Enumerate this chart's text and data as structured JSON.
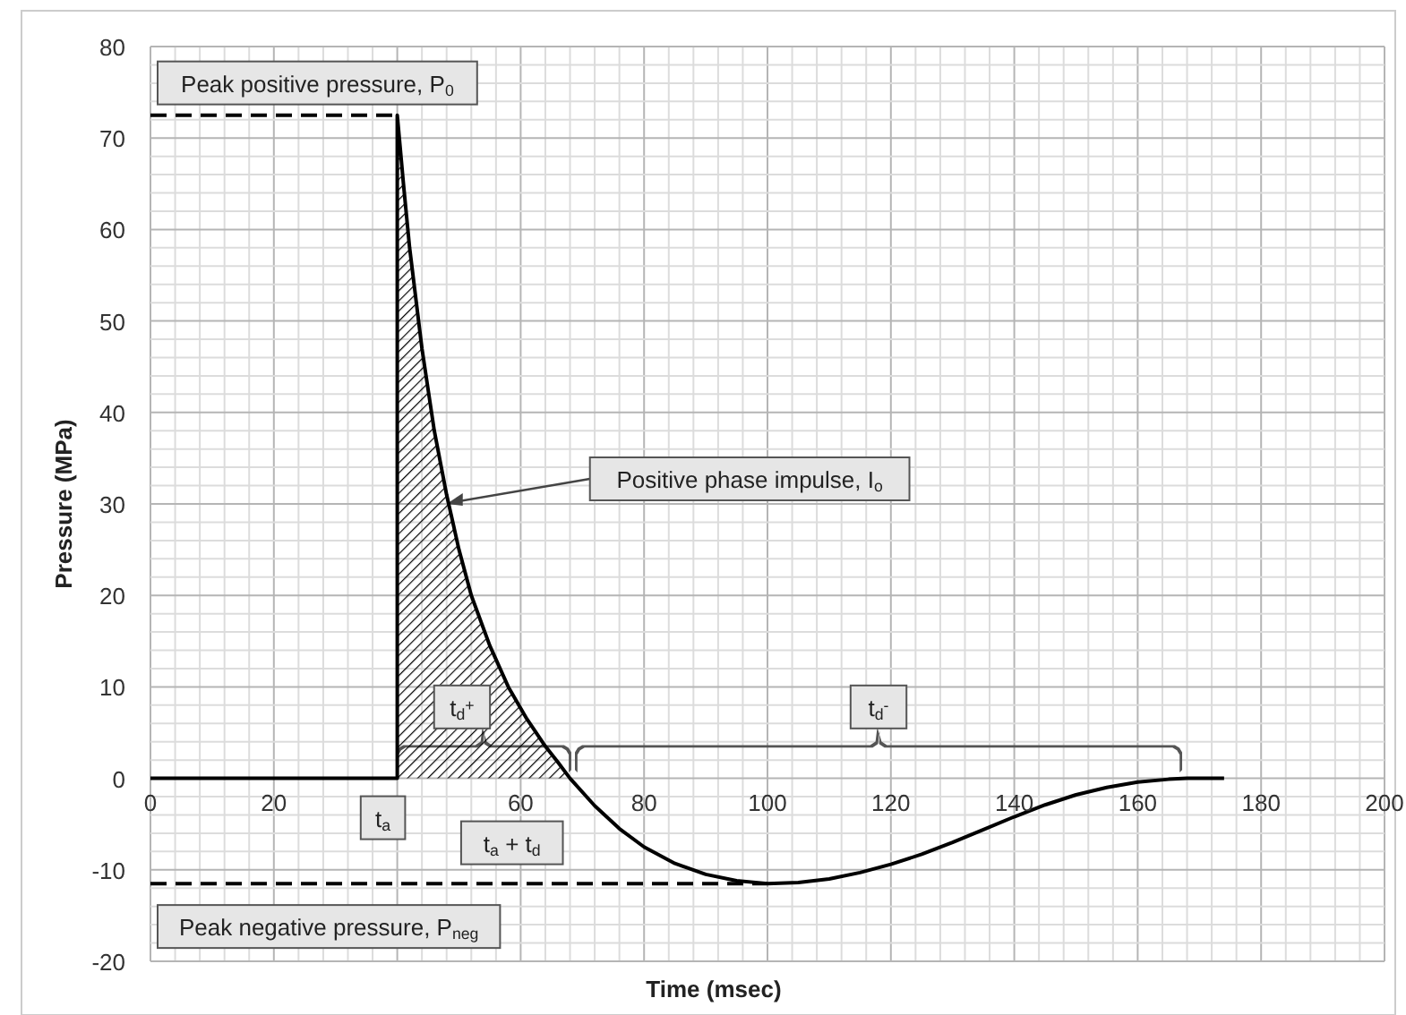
{
  "chart_data": {
    "type": "line",
    "xlabel": "Time  (msec)",
    "ylabel": "Pressure (MPa)",
    "xlim": [
      0,
      200
    ],
    "ylim": [
      -20,
      80
    ],
    "xticks": [
      0,
      {
        "value": 4,
        "label": null
      },
      {
        "value": 8,
        "label": null
      },
      {
        "value": 12,
        "label": null
      },
      {
        "value": 16,
        "label": null
      },
      20,
      {
        "value": 24,
        "label": null
      },
      {
        "value": 28,
        "label": null
      },
      {
        "value": 32,
        "label": null
      },
      {
        "value": 36,
        "label": null
      },
      {
        "value": 40,
        "label": null
      },
      {
        "value": 44,
        "label": null
      },
      {
        "value": 48,
        "label": null
      },
      {
        "value": 52,
        "label": null
      },
      {
        "value": 56,
        "label": null
      },
      60,
      {
        "value": 64,
        "label": null
      },
      {
        "value": 68,
        "label": null
      },
      {
        "value": 72,
        "label": null
      },
      {
        "value": 76,
        "label": null
      },
      80,
      {
        "value": 84,
        "label": null
      },
      {
        "value": 88,
        "label": null
      },
      {
        "value": 92,
        "label": null
      },
      {
        "value": 96,
        "label": null
      },
      100,
      {
        "value": 104,
        "label": null
      },
      {
        "value": 108,
        "label": null
      },
      {
        "value": 112,
        "label": null
      },
      {
        "value": 116,
        "label": null
      },
      120,
      {
        "value": 124,
        "label": null
      },
      {
        "value": 128,
        "label": null
      },
      {
        "value": 132,
        "label": null
      },
      {
        "value": 136,
        "label": null
      },
      140,
      {
        "value": 144,
        "label": null
      },
      {
        "value": 148,
        "label": null
      },
      {
        "value": 152,
        "label": null
      },
      {
        "value": 156,
        "label": null
      },
      160,
      {
        "value": 164,
        "label": null
      },
      {
        "value": 168,
        "label": null
      },
      {
        "value": 172,
        "label": null
      },
      {
        "value": 176,
        "label": null
      },
      180,
      {
        "value": 184,
        "label": null
      },
      {
        "value": 188,
        "label": null
      },
      {
        "value": 192,
        "label": null
      },
      {
        "value": 196,
        "label": null
      },
      200
    ],
    "yticks": [
      -20,
      {
        "value": -18,
        "label": null
      },
      {
        "value": -16,
        "label": null
      },
      {
        "value": -14,
        "label": null
      },
      {
        "value": -12,
        "label": null
      },
      -10,
      {
        "value": -8,
        "label": null
      },
      {
        "value": -6,
        "label": null
      },
      {
        "value": -4,
        "label": null
      },
      {
        "value": -2,
        "label": null
      },
      0,
      {
        "value": 2,
        "label": null
      },
      {
        "value": 4,
        "label": null
      },
      {
        "value": 6,
        "label": null
      },
      {
        "value": 8,
        "label": null
      },
      10,
      {
        "value": 12,
        "label": null
      },
      {
        "value": 14,
        "label": null
      },
      {
        "value": 16,
        "label": null
      },
      {
        "value": 18,
        "label": null
      },
      20,
      {
        "value": 22,
        "label": null
      },
      {
        "value": 24,
        "label": null
      },
      {
        "value": 26,
        "label": null
      },
      {
        "value": 28,
        "label": null
      },
      30,
      {
        "value": 32,
        "label": null
      },
      {
        "value": 34,
        "label": null
      },
      {
        "value": 36,
        "label": null
      },
      {
        "value": 38,
        "label": null
      },
      40,
      {
        "value": 42,
        "label": null
      },
      {
        "value": 44,
        "label": null
      },
      {
        "value": 46,
        "label": null
      },
      {
        "value": 48,
        "label": null
      },
      50,
      {
        "value": 52,
        "label": null
      },
      {
        "value": 54,
        "label": null
      },
      {
        "value": 56,
        "label": null
      },
      {
        "value": 58,
        "label": null
      },
      60,
      {
        "value": 62,
        "label": null
      },
      {
        "value": 64,
        "label": null
      },
      {
        "value": 66,
        "label": null
      },
      {
        "value": 68,
        "label": null
      },
      70,
      {
        "value": 72,
        "label": null
      },
      {
        "value": 74,
        "label": null
      },
      {
        "value": 76,
        "label": null
      },
      {
        "value": 78,
        "label": null
      },
      80
    ],
    "grid": true,
    "series": [
      {
        "type": "area",
        "color": "#000000",
        "x": [
          40,
          41,
          42,
          44,
          46,
          48,
          50,
          52,
          55,
          58,
          61,
          64,
          66,
          68
        ],
        "values": [
          72.5,
          65,
          58,
          47,
          38,
          31,
          25,
          20,
          14.5,
          10,
          6.5,
          3.5,
          1.8,
          0
        ]
      },
      {
        "color": "#000000",
        "line_style": "solid",
        "x": [
          0,
          40,
          40,
          41,
          42,
          44,
          46,
          48,
          50,
          52,
          55,
          58,
          61,
          64,
          66,
          68,
          72,
          76,
          80,
          85,
          90,
          95,
          100,
          105,
          110,
          115,
          120,
          125,
          130,
          135,
          140,
          145,
          150,
          155,
          160,
          165,
          168,
          174
        ],
        "values": [
          0,
          0,
          72.5,
          65,
          58,
          47,
          38,
          31,
          25,
          20,
          14.5,
          10,
          6.5,
          3.5,
          1.8,
          0,
          -3,
          -5.5,
          -7.5,
          -9.3,
          -10.5,
          -11.2,
          -11.5,
          -11.4,
          -11,
          -10.3,
          -9.4,
          -8.3,
          -7,
          -5.6,
          -4.2,
          -2.9,
          -1.8,
          -1,
          -0.4,
          -0.1,
          0,
          0
        ]
      },
      {
        "type": "line",
        "color": "#000000",
        "line_style": "dashed",
        "x": [
          0,
          40
        ],
        "values": [
          72.5,
          72.5
        ]
      },
      {
        "type": "line",
        "color": "#000000",
        "line_style": "dashed",
        "x": [
          0,
          100
        ],
        "values": [
          -11.5,
          -11.5
        ]
      }
    ],
    "annotations": [
      {
        "text": "Peak positive pressure, P$_{0}$",
        "x": 0,
        "y": 72.5
      },
      {
        "text": "Positive phase impulse, I$_{o}$",
        "x": 48,
        "y": 30
      },
      "t$_{d}$$^{+}$",
      "t$_{d}$$^{-}$",
      {
        "text": "t$_{a}$",
        "x": 40,
        "y": 0
      },
      {
        "text": "t$_{a}$ + t$_{d}$",
        "x": 68,
        "y": 0
      },
      {
        "text": "Peak negative pressure, P$_{neg}$",
        "x": 0,
        "y": -11.5
      }
    ]
  }
}
